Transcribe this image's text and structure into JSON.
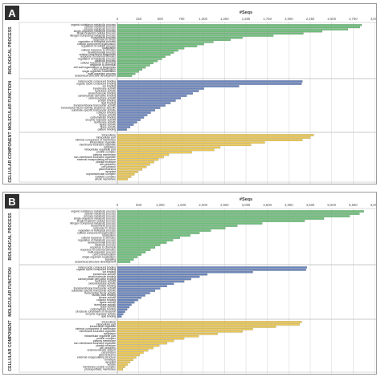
{
  "colors": {
    "bp": "#6dbf7a",
    "mf": "#6b86bd",
    "cc": "#ecc955",
    "grid": "#d4d4d4"
  },
  "panels": [
    {
      "label": "A",
      "axis_title": "#Seqs"
    },
    {
      "label": "B",
      "axis_title": "#Seqs"
    }
  ],
  "chart_data": [
    {
      "type": "bar",
      "orientation": "horizontal",
      "panel": "A",
      "xlabel": "#Seqs",
      "xlim": [
        0,
        3000
      ],
      "ticks": [
        "0",
        "250",
        "500",
        "750",
        "1,000",
        "1,250",
        "1,500",
        "1,750",
        "2,000",
        "2,250",
        "2,500",
        "2,750",
        "3,000"
      ],
      "groups": [
        {
          "name": "BIOLOGICAL PROCESS",
          "color_key": "bp",
          "categories": [
            "organic substance metabolic process",
            "cellular metabolic process",
            "primary metabolic process",
            "single-organism metabolic process",
            "single-organism cellular process",
            "nitrogen compound metabolic process",
            "biosynthetic process",
            "response to stress",
            "regulation of biological process",
            "cellular component organization",
            "regulation of cellular process",
            "localization",
            "cellular response to stimulus",
            "developmental process",
            "cellular component biogenesis",
            "response to external stimulus",
            "regulation of metabolic process",
            "catabolic process",
            "cellular response to chemical",
            "response to chemical",
            "cell wall organization or biogenesis",
            "cell communication",
            "single-organism localization",
            "multi-organism process",
            "anatomical structure development"
          ],
          "values": [
            2850,
            2830,
            2690,
            2390,
            2170,
            1820,
            1460,
            1320,
            1120,
            1010,
            930,
            780,
            710,
            660,
            620,
            560,
            520,
            470,
            420,
            380,
            330,
            290,
            250,
            210,
            170
          ]
        },
        {
          "name": "MOLECULAR FUNCTION",
          "color_key": "mf",
          "categories": [
            "heterocyclic compound binding",
            "organic cyclic compound binding",
            "ion binding",
            "transferase activity",
            "hydrolase activity",
            "small molecule binding",
            "carbohydrate derivative binding",
            "oxidoreductase activity",
            "protein binding",
            "lipid binding",
            "transmembrane transporter activity",
            "transcription factor activity, sequence-specific",
            "substrate-specific transporter activity",
            "cofactor binding",
            "kinase activity",
            "carbohydrate binding",
            "enzyme regulator activity",
            "isomerase activity",
            "ligase activity",
            "lyase activity",
            "pattern binding"
          ],
          "values": [
            2160,
            2150,
            1420,
            1010,
            950,
            880,
            810,
            740,
            680,
            620,
            560,
            500,
            440,
            390,
            350,
            310,
            270,
            230,
            190,
            150,
            110
          ]
        },
        {
          "name": "CELLULAR COMPONENT",
          "color_key": "cc",
          "categories": [
            "intracellular",
            "intracellular part",
            "intrinsic component of membrane",
            "intracellular organelle",
            "membrane-bounded organelle",
            "cytoplasm",
            "intracellular organelle part",
            "protein complex",
            "plasma membrane",
            "non-membrane-bounded organelle",
            "external encapsulating structure",
            "plastid envelope",
            "cell periphery",
            "cell junction",
            "plasmodesma",
            "apoplast",
            "supramolecular complex",
            "catalytic complex",
            "whole membrane"
          ],
          "values": [
            2290,
            2250,
            2160,
            1720,
            1560,
            1200,
            1130,
            870,
            600,
            540,
            480,
            430,
            380,
            340,
            290,
            240,
            200,
            160,
            120
          ]
        }
      ]
    },
    {
      "type": "bar",
      "orientation": "horizontal",
      "panel": "B",
      "xlabel": "#Seqs",
      "xlim": [
        0,
        6000
      ],
      "ticks": [
        "0",
        "500",
        "1,000",
        "1,500",
        "2,000",
        "2,500",
        "3,000",
        "3,500",
        "4,000",
        "4,500",
        "5,000",
        "5,500",
        "6,000"
      ],
      "groups": [
        {
          "name": "BIOLOGICAL PROCESS",
          "color_key": "bp",
          "categories": [
            "organic substance metabolic process",
            "cellular metabolic process",
            "primary metabolic process",
            "single-organism metabolic process",
            "single-organism cellular process",
            "nitrogen compound metabolic process",
            "biosynthetic process",
            "response to stress",
            "regulation of biological process",
            "cellular component organization",
            "localization",
            "cellular response to stimulus",
            "regulation of metabolic process",
            "developmental process",
            "catabolic process",
            "response to chemical",
            "response to external stimulus",
            "multi-organism process",
            "cell communication",
            "single-organism localization",
            "signaling",
            "anatomical structure development"
          ],
          "values": [
            5750,
            5650,
            5420,
            4820,
            4370,
            3380,
            2800,
            2520,
            2180,
            1920,
            1700,
            1460,
            1300,
            1150,
            1000,
            880,
            770,
            660,
            560,
            470,
            380,
            300
          ]
        },
        {
          "name": "MOLECULAR FUNCTION",
          "color_key": "mf",
          "categories": [
            "heterocyclic compound binding",
            "organic cyclic compound binding",
            "ion binding",
            "transferase activity",
            "small molecule binding",
            "carbohydrate derivative binding",
            "hydrolase activity",
            "oxidoreductase activity",
            "protein binding",
            "transmembrane transporter activity",
            "substrate-specific transporter activity",
            "transcription factor activity",
            "nucleic acid binding",
            "kinase activity",
            "cofactor binding",
            "ligase activity",
            "isomerase activity",
            "lyase activity",
            "carbohydrate binding",
            "structural constituent of ribosome",
            "enzyme regulator activity",
            "lipid binding"
          ],
          "values": [
            4420,
            4400,
            3160,
            2100,
            1920,
            1720,
            1560,
            1320,
            1160,
            1000,
            880,
            760,
            650,
            560,
            480,
            400,
            330,
            280,
            230,
            180,
            140,
            100
          ]
        },
        {
          "name": "CELLULAR COMPONENT",
          "color_key": "cc",
          "categories": [
            "intracellular",
            "intracellular part",
            "intracellular organelle",
            "intrinsic component of membrane",
            "membrane-bounded organelle",
            "cytoplasm",
            "intracellular organelle part",
            "protein complex",
            "plasma membrane",
            "non-membrane-bounded organelle",
            "plastid envelope",
            "cell periphery",
            "endomembrane system",
            "cell junction",
            "plasmodesma",
            "external encapsulating structure",
            "envelope",
            "apoplast",
            "vesicle",
            "membrane protein complex",
            "photosynthetic membrane"
          ],
          "values": [
            4300,
            4250,
            3700,
            3160,
            2920,
            2340,
            1900,
            1560,
            1320,
            1160,
            980,
            840,
            720,
            610,
            520,
            440,
            370,
            300,
            240,
            180,
            130
          ]
        }
      ]
    }
  ]
}
